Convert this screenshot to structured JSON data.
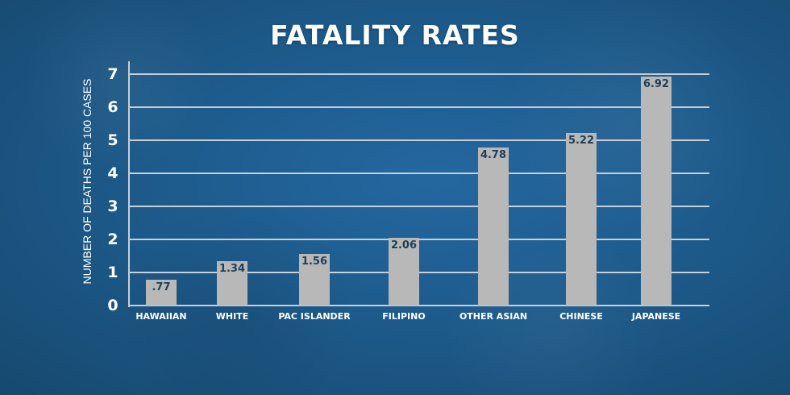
{
  "chart_data": {
    "type": "bar",
    "title": "FATALITY RATES",
    "xlabel": "",
    "ylabel": "NUMBER OF DEATHS PER 100 CASES",
    "categories": [
      "HAWAIIAN",
      "WHITE",
      "PAC ISLANDER",
      "FILIPINO",
      "OTHER ASIAN",
      "CHINESE",
      "JAPANESE"
    ],
    "values": [
      0.77,
      1.34,
      1.56,
      2.06,
      4.78,
      5.22,
      6.92
    ],
    "value_labels": [
      ".77",
      "1.34",
      "1.56",
      "2.06",
      "4.78",
      "5.22",
      "6.92"
    ],
    "ylim": [
      0,
      7
    ],
    "yticks": [
      "0",
      "1",
      "2",
      "3",
      "4",
      "5",
      "6",
      "7"
    ],
    "grid": true,
    "legend": null,
    "colors": {
      "bar": "#b8b8b8",
      "bar_label": "#1f3f57",
      "gridline": "#c9cfd6",
      "background": "#1d5b8c",
      "text": "#ffffff"
    }
  }
}
